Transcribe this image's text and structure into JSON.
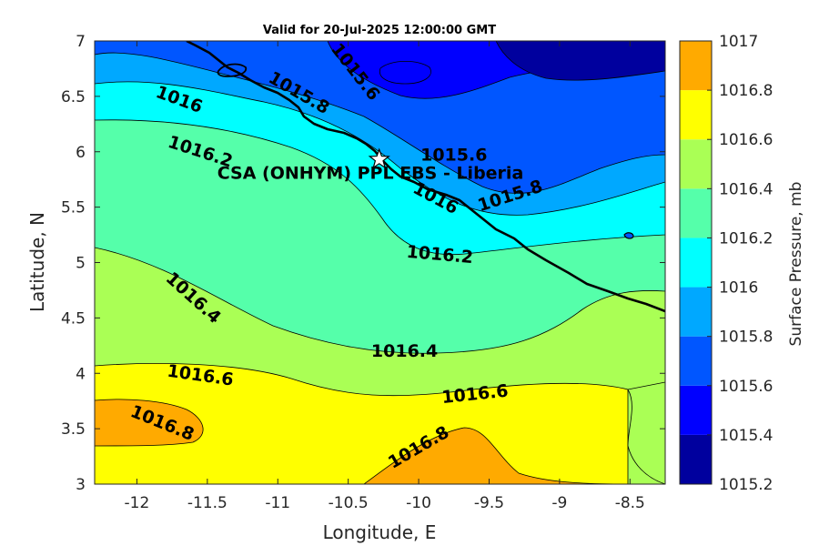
{
  "chart_data": {
    "type": "contour",
    "title": "Valid for 20-Jul-2025 12:00:00 GMT",
    "xlabel": "Longitude, E",
    "ylabel": "Latitude, N",
    "xlim": [
      -12.3,
      -8.25
    ],
    "ylim": [
      3,
      7
    ],
    "xticks": [
      "-12",
      "-11.5",
      "-11",
      "-10.5",
      "-10",
      "-9.5",
      "-9",
      "-8.5"
    ],
    "xtick_values": [
      -12,
      -11.5,
      -11,
      -10.5,
      -10,
      -9.5,
      -9,
      -8.5
    ],
    "yticks": [
      "3",
      "3.5",
      "4",
      "4.5",
      "5",
      "5.5",
      "6",
      "6.5",
      "7"
    ],
    "ytick_values": [
      3,
      3.5,
      4,
      4.5,
      5,
      5.5,
      6,
      6.5,
      7
    ],
    "colorbar": {
      "title": "Surface Pressure, mb",
      "levels": [
        1015.2,
        1015.4,
        1015.6,
        1015.8,
        1016,
        1016.2,
        1016.4,
        1016.6,
        1016.8,
        1017
      ],
      "labels": [
        "1015.2",
        "1015.4",
        "1015.6",
        "1015.8",
        "1016",
        "1016.2",
        "1016.4",
        "1016.6",
        "1016.8",
        "1017"
      ],
      "colors": [
        "#00009e",
        "#0000ff",
        "#0056ff",
        "#00a8ff",
        "#00ffff",
        "#55ffaa",
        "#aaff55",
        "#ffff00",
        "#ffaa00",
        "#ff5500"
      ]
    },
    "contour_labels": [
      {
        "text": "1015.6",
        "lon": -10.45,
        "lat": 6.72,
        "angle": 52
      },
      {
        "text": "1015.8",
        "lon": -10.85,
        "lat": 6.53,
        "angle": 30
      },
      {
        "text": "1016",
        "lon": -11.7,
        "lat": 6.47,
        "angle": 20
      },
      {
        "text": "1015.6",
        "lon": -9.75,
        "lat": 5.97,
        "angle": 0
      },
      {
        "text": "1016.2",
        "lon": -11.55,
        "lat": 6.0,
        "angle": 18
      },
      {
        "text": "1016",
        "lon": -9.88,
        "lat": 5.58,
        "angle": 28
      },
      {
        "text": "1015.8",
        "lon": -9.35,
        "lat": 5.6,
        "angle": -18
      },
      {
        "text": "1016.2",
        "lon": -9.85,
        "lat": 5.07,
        "angle": 5
      },
      {
        "text": "1016.4",
        "lon": -11.6,
        "lat": 4.68,
        "angle": 42
      },
      {
        "text": "1016.4",
        "lon": -10.1,
        "lat": 4.2,
        "angle": 0
      },
      {
        "text": "1016.6",
        "lon": -11.55,
        "lat": 3.98,
        "angle": 8
      },
      {
        "text": "1016.6",
        "lon": -9.6,
        "lat": 3.81,
        "angle": -6
      },
      {
        "text": "1016.8",
        "lon": -11.82,
        "lat": 3.55,
        "angle": 22
      },
      {
        "text": "1016.8",
        "lon": -10.0,
        "lat": 3.33,
        "angle": -30
      }
    ],
    "site": {
      "name": "CSA (ONHYM) PPL EBS  - Liberia",
      "lon": -10.28,
      "lat": 5.93,
      "marker": "star"
    }
  }
}
